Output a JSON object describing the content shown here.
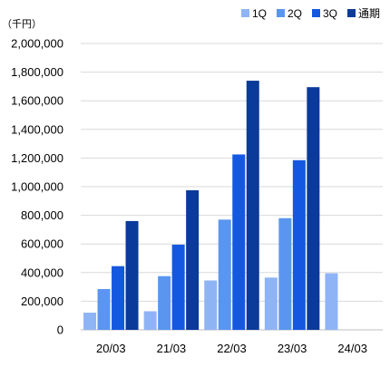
{
  "chart_data": {
    "type": "bar",
    "unit_label": "（千円）",
    "categories": [
      "20/03",
      "21/03",
      "22/03",
      "23/03",
      "24/03"
    ],
    "series": [
      {
        "name": "1Q",
        "color": "#8FB4F5",
        "values": [
          120000,
          130000,
          345000,
          365000,
          395000
        ]
      },
      {
        "name": "2Q",
        "color": "#5A96F0",
        "values": [
          285000,
          375000,
          770000,
          780000,
          null
        ]
      },
      {
        "name": "3Q",
        "color": "#1558E0",
        "values": [
          445000,
          595000,
          1225000,
          1185000,
          null
        ]
      },
      {
        "name": "通期",
        "color": "#0A3A9A",
        "values": [
          760000,
          975000,
          1740000,
          1695000,
          null
        ]
      }
    ],
    "y_ticks": [
      "0",
      "200,000",
      "400,000",
      "600,000",
      "800,000",
      "1,000,000",
      "1,200,000",
      "1,400,000",
      "1,600,000",
      "1,800,000",
      "2,000,000"
    ],
    "ylim": [
      0,
      2000000
    ],
    "grid": true,
    "legend_position": "top-right",
    "title": "",
    "xlabel": "",
    "ylabel": ""
  }
}
